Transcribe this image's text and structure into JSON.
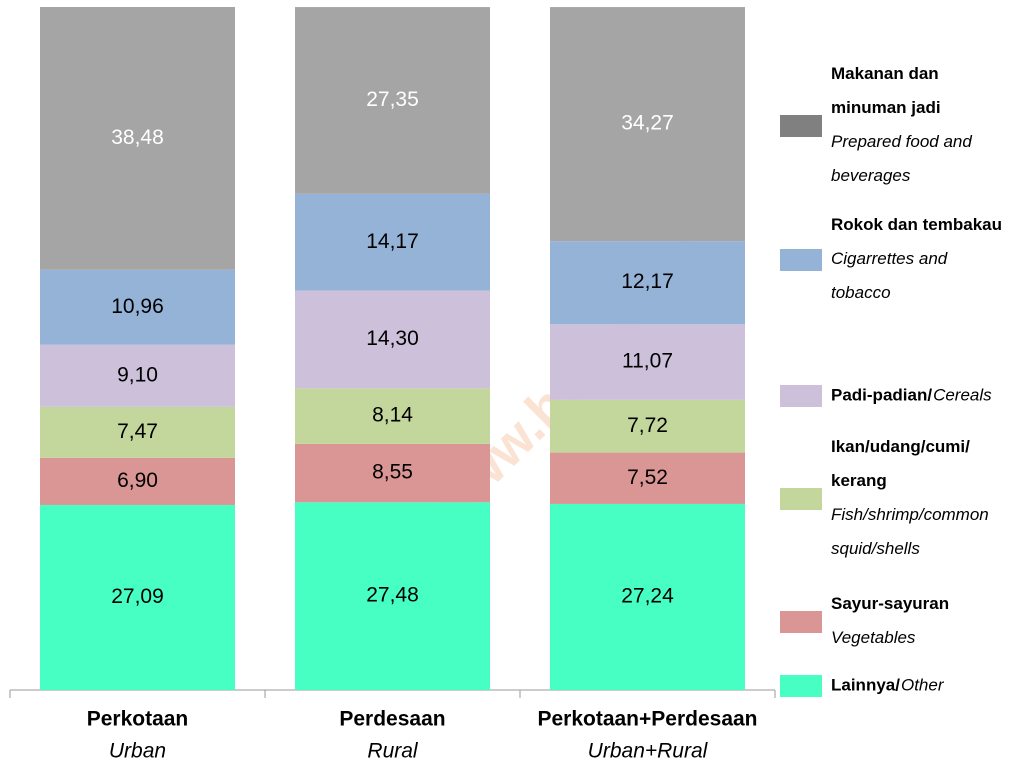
{
  "chart_data": {
    "type": "stacked_bar",
    "watermark": "https://www.bps.go.id",
    "categories": [
      "Perkotaan",
      "Perdesaan",
      "Perkotaan+Perdesaan"
    ],
    "categories_en": [
      "Urban",
      "Rural",
      "Urban+Rural"
    ],
    "ylim": [
      0,
      100
    ],
    "series": [
      {
        "name": "Lainnya/",
        "name_en": "Other",
        "color": "#47ffc2",
        "label_color": "#000000",
        "values": [
          27.09,
          27.48,
          27.24
        ],
        "value_labels": [
          "27,09",
          "27,48",
          "27,24"
        ]
      },
      {
        "name": "Sayur-sayuran",
        "name_en": "Vegetables",
        "color": "#da9694",
        "label_color": "#000000",
        "values": [
          6.9,
          8.55,
          7.52
        ],
        "value_labels": [
          "6,90",
          "8,55",
          "7,52"
        ]
      },
      {
        "name": "Ikan/udang/cumi/ kerang",
        "name_en": "Fish/shrimp/common squid/shells",
        "color": "#c3d69b",
        "label_color": "#000000",
        "values": [
          7.47,
          8.14,
          7.72
        ],
        "value_labels": [
          "7,47",
          "8,14",
          "7,72"
        ]
      },
      {
        "name": "Padi-padian/",
        "name_en": "Cereals",
        "color": "#ccc0da",
        "label_color": "#000000",
        "values": [
          9.1,
          14.3,
          11.07
        ],
        "value_labels": [
          "9,10",
          "14,30",
          "11,07"
        ]
      },
      {
        "name": "Rokok dan tembakau",
        "name_en": "Cigarrettes and tobacco",
        "color": "#95b3d7",
        "label_color": "#000000",
        "values": [
          10.96,
          14.17,
          12.17
        ],
        "value_labels": [
          "10,96",
          "14,17",
          "12,17"
        ]
      },
      {
        "name": "Makanan dan minuman jadi",
        "name_en": "Prepared food and beverages",
        "color": "#a5a5a5",
        "label_color": "#ffffff",
        "values": [
          38.48,
          27.35,
          34.27
        ],
        "value_labels": [
          "38,48",
          "27,35",
          "34,27"
        ]
      }
    ]
  }
}
